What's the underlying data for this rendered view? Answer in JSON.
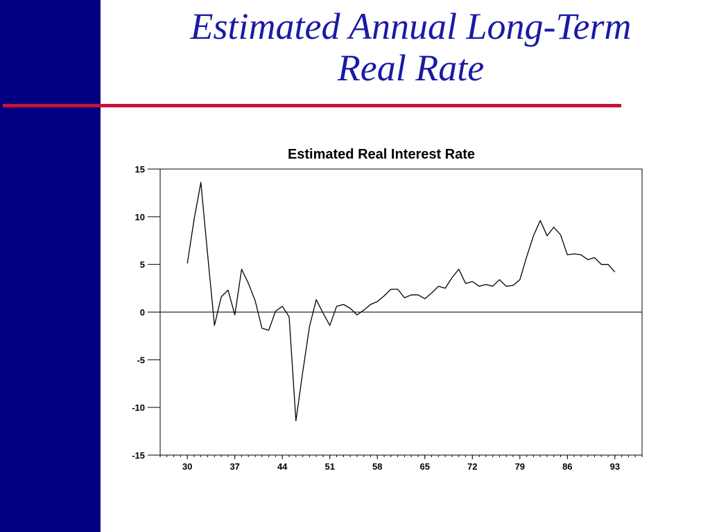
{
  "slide": {
    "title_line1": "Estimated Annual Long-Term",
    "title_line2": "Real Rate",
    "sidebar_color": "#000080",
    "title_color": "#1a1aa6",
    "rule_color": "#cc1133"
  },
  "chart_data": {
    "type": "line",
    "title": "Estimated Real Interest Rate",
    "xlabel": "",
    "ylabel": "",
    "ylim": [
      -15,
      15
    ],
    "xlim": [
      1926,
      1997
    ],
    "yticks": [
      15,
      10,
      5,
      0,
      -5,
      -10,
      -15
    ],
    "xticks": [
      {
        "value": 1930,
        "label": "30"
      },
      {
        "value": 1937,
        "label": "37"
      },
      {
        "value": 1944,
        "label": "44"
      },
      {
        "value": 1951,
        "label": "51"
      },
      {
        "value": 1958,
        "label": "58"
      },
      {
        "value": 1965,
        "label": "65"
      },
      {
        "value": 1972,
        "label": "72"
      },
      {
        "value": 1979,
        "label": "79"
      },
      {
        "value": 1986,
        "label": "86"
      },
      {
        "value": 1993,
        "label": "93"
      }
    ],
    "zero_line": true,
    "grid": false,
    "series": [
      {
        "x": [
          1930,
          1931,
          1932,
          1933,
          1934,
          1935,
          1936,
          1937,
          1938,
          1939,
          1940,
          1941,
          1942,
          1943,
          1944,
          1945,
          1946,
          1947,
          1948,
          1949,
          1950,
          1951,
          1952,
          1953,
          1954,
          1955,
          1956,
          1957,
          1958,
          1959,
          1960,
          1961,
          1962,
          1963,
          1964,
          1965,
          1966,
          1967,
          1968,
          1969,
          1970,
          1971,
          1972,
          1973,
          1974,
          1975,
          1976,
          1977,
          1978,
          1979,
          1980,
          1981,
          1982,
          1983,
          1984,
          1985,
          1986,
          1987,
          1988,
          1989,
          1990,
          1991,
          1992,
          1993
        ],
        "values": [
          5.1,
          9.7,
          13.6,
          6.0,
          -1.4,
          1.6,
          2.3,
          -0.3,
          4.5,
          3.0,
          1.2,
          -1.7,
          -1.9,
          0.1,
          0.6,
          -0.5,
          -11.4,
          -6.3,
          -1.5,
          1.3,
          -0.1,
          -1.4,
          0.6,
          0.8,
          0.4,
          -0.3,
          0.2,
          0.8,
          1.1,
          1.7,
          2.4,
          2.4,
          1.5,
          1.8,
          1.8,
          1.4,
          2.0,
          2.7,
          2.5,
          3.6,
          4.5,
          3.0,
          3.2,
          2.7,
          2.9,
          2.7,
          3.4,
          2.7,
          2.8,
          3.4,
          5.8,
          8.0,
          9.6,
          8.0,
          8.9,
          8.1,
          6.0,
          6.1,
          6.0,
          5.5,
          5.7,
          5.0,
          5.0,
          4.2
        ]
      }
    ],
    "line_color": "#000000"
  }
}
